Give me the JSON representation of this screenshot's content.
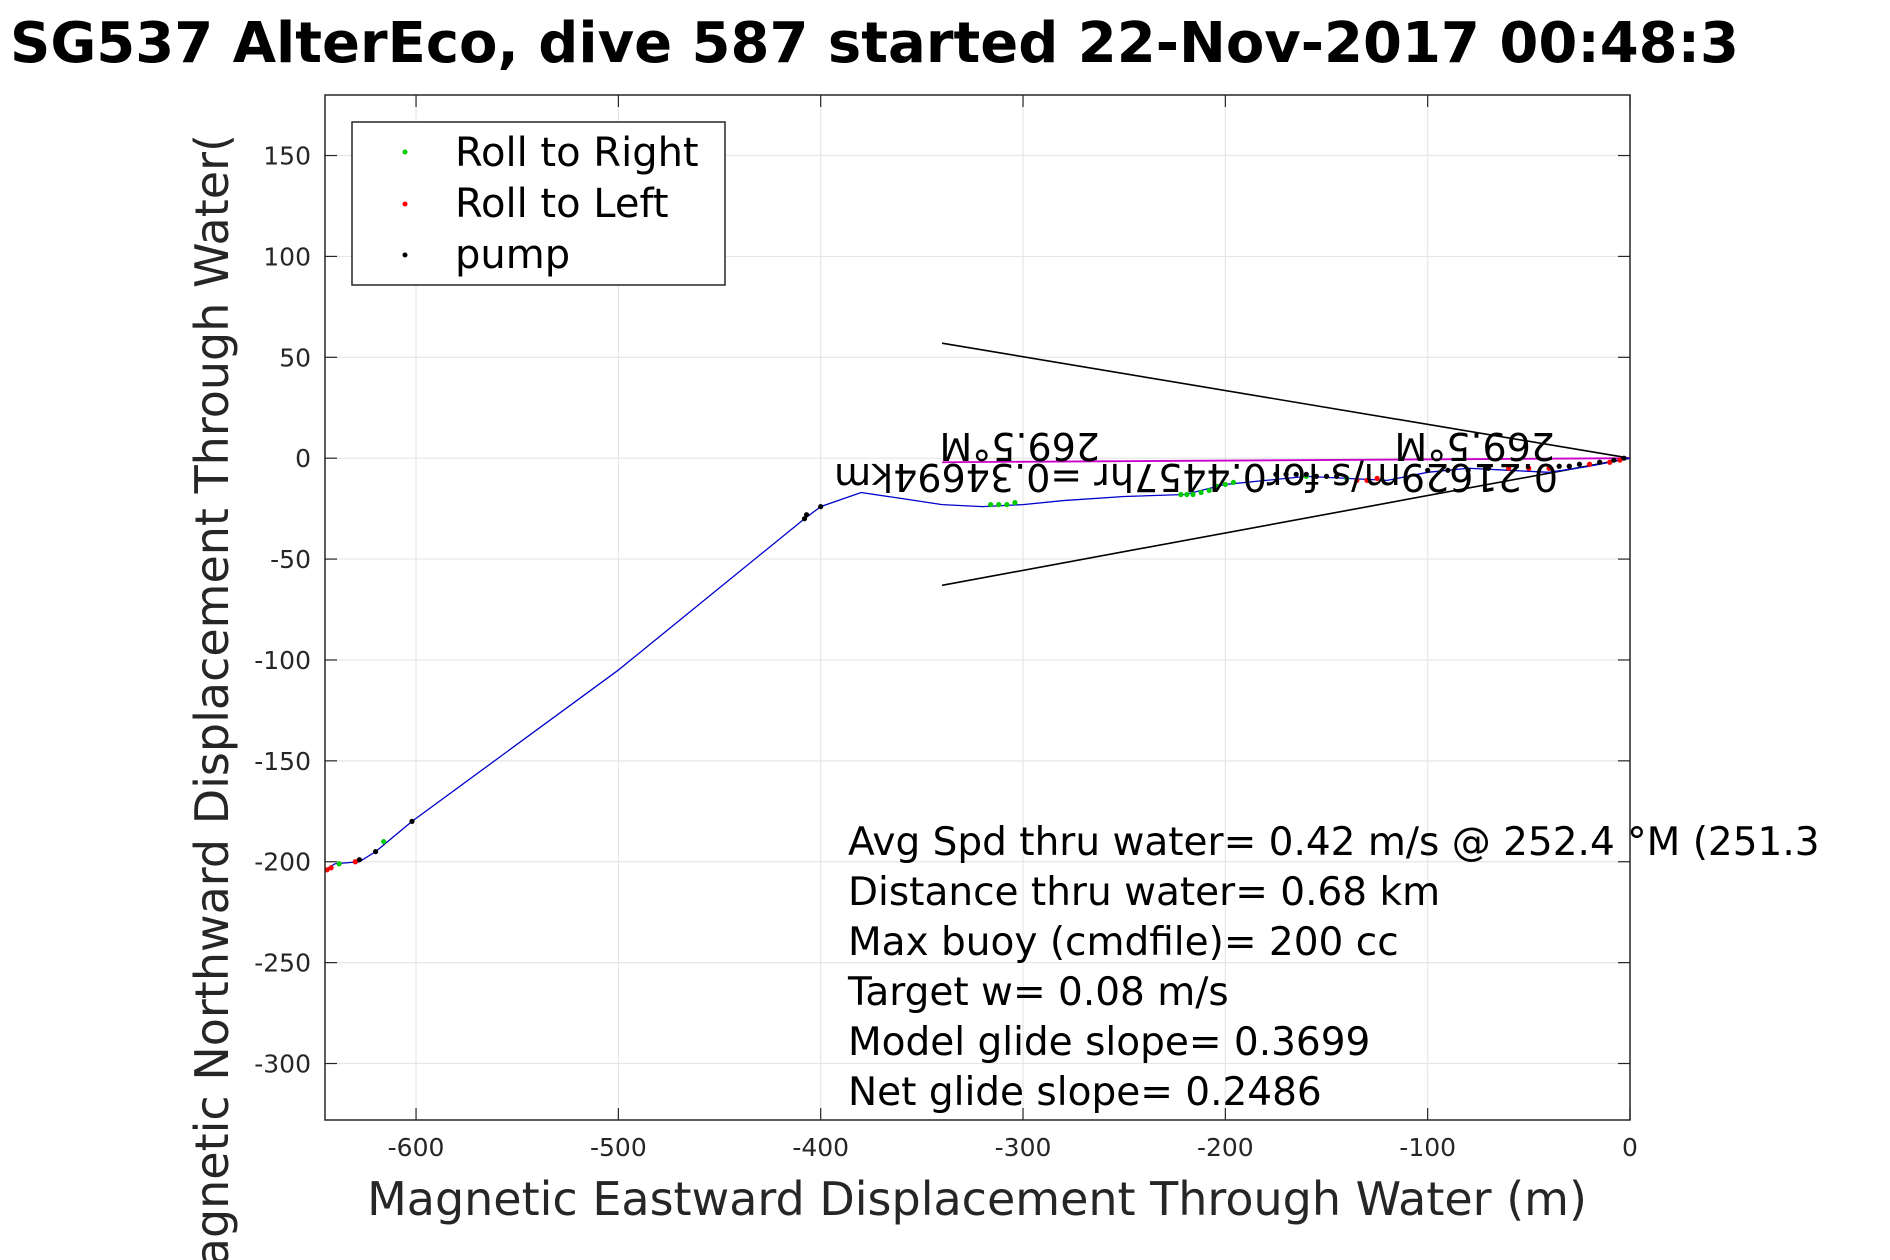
{
  "chart_data": {
    "type": "scatter",
    "title": "SG537 AlterEco, dive 587 started 22-Nov-2017 00:48:3",
    "xlabel": "Magnetic Eastward Displacement Through Water (m)",
    "ylabel": "Magnetic Northward Displacement Through Water(",
    "xlim": [
      -645,
      0
    ],
    "ylim": [
      -328,
      180
    ],
    "xticks": [
      -600,
      -500,
      -400,
      -300,
      -200,
      -100,
      0
    ],
    "yticks": [
      150,
      100,
      50,
      0,
      -50,
      -100,
      -150,
      -200,
      -250,
      -300
    ],
    "grid": true,
    "legend": {
      "placement": "top-left",
      "entries": [
        {
          "label": "Roll to Right",
          "color": "#00cc00"
        },
        {
          "label": "Roll to Left",
          "color": "#ff0000"
        },
        {
          "label": "pump",
          "color": "#000000"
        }
      ]
    },
    "track": {
      "color": "#0000cc",
      "x": [
        0,
        -20,
        -40,
        -60,
        -80,
        -100,
        -120,
        -140,
        -160,
        -180,
        -200,
        -220,
        -250,
        -280,
        -300,
        -320,
        -340,
        -360,
        -380,
        -400,
        -408,
        -500,
        -602,
        -620,
        -628,
        -640,
        -645
      ],
      "y": [
        0,
        -4,
        -7,
        -6,
        -5,
        -7,
        -11,
        -10,
        -9,
        -11,
        -13,
        -18,
        -19,
        -21,
        -23,
        -24,
        -23,
        -20,
        -17,
        -24,
        -30,
        -105,
        -180,
        -195,
        -200,
        -201,
        -204
      ]
    },
    "current_line": {
      "color": "#cc00cc",
      "x": [
        0,
        -340
      ],
      "y": [
        0,
        -2
      ]
    },
    "wedge": {
      "color": "#000000",
      "x": [
        -340,
        0,
        -340
      ],
      "y": [
        57,
        0,
        -63
      ]
    },
    "series": [
      {
        "name": "Roll to Right",
        "color": "#00cc00",
        "x": [
          -222,
          -219,
          -216,
          -212,
          -208,
          -204,
          -200,
          -196,
          -316,
          -312,
          -308,
          -304,
          -160,
          -150,
          -140,
          -638,
          -616
        ],
        "y": [
          -18,
          -18,
          -18,
          -17,
          -16,
          -14,
          -13,
          -12,
          -23,
          -23,
          -23,
          -22,
          -9,
          -9,
          -10,
          -201,
          -190
        ]
      },
      {
        "name": "Roll to Left",
        "color": "#ff0000",
        "x": [
          -644,
          -642,
          -630,
          -135,
          -130,
          -125,
          -60,
          -50,
          -40,
          -30,
          -20,
          -10,
          -5
        ],
        "y": [
          -204,
          -203,
          -200,
          -11,
          -11,
          -10,
          -5,
          -5,
          -5,
          -4,
          -3,
          -2,
          -1
        ]
      },
      {
        "name": "pump",
        "color": "#000000",
        "x": [
          -602,
          -620,
          -628,
          -408,
          -407,
          -400,
          -175,
          -170,
          -165,
          -160,
          -155,
          -150,
          -145,
          -100,
          -90,
          -80,
          -70,
          -35,
          -30,
          -25,
          -15,
          -8,
          -3
        ],
        "y": [
          -180,
          -195,
          -199,
          -30,
          -28,
          -24,
          -8,
          -8,
          -8,
          -8,
          -9,
          -9,
          -9,
          -6,
          -6,
          -6,
          -5,
          -4,
          -4,
          -3,
          -2,
          -1,
          0
        ]
      }
    ],
    "annotations": {
      "flipped": [
        "269.5°M",
        "269.5°M",
        "0.21629m/s for0.4457hr =0.34694km"
      ],
      "info_lines": [
        "Avg Spd thru water=  0.42 m/s @ 252.4 °M (251.3",
        "Distance thru water=  0.68 km",
        "Max buoy (cmdfile)= 200 cc",
        "Target w= 0.08 m/s",
        "Model glide slope= 0.3699",
        "Net glide slope= 0.2486"
      ]
    }
  }
}
